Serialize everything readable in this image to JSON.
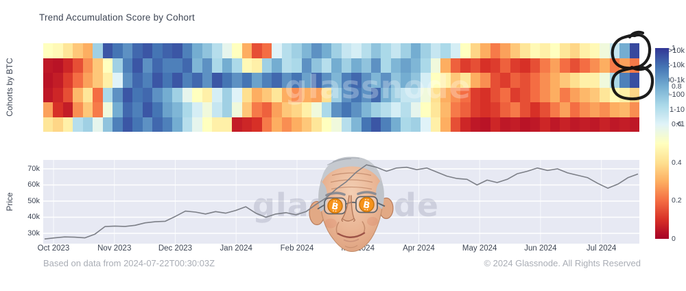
{
  "title": "Trend Accumulation Score by Cohort",
  "watermark": {
    "text": "glassnode"
  },
  "footer": {
    "left": "Based on data from 2024-07-22T00:30:03Z",
    "right": "© 2024 Glassnode. All Rights Reserved"
  },
  "colors": {
    "plot_background": "#e7e9f3",
    "price_line": "#7c7f87",
    "annotation_ink": "#0b0b0b",
    "bitcoin_orange": "#f7931a",
    "text_dark": "#3d4554",
    "text_muted": "#a9adb5",
    "colorscale_rdylbu": [
      "#a50026",
      "#d73027",
      "#f46d43",
      "#fdae61",
      "#fee090",
      "#ffffbf",
      "#e0f3f8",
      "#abd9e9",
      "#74add1",
      "#4575b4",
      "#313695"
    ]
  },
  "colorbar": {
    "tick_labels": [
      "1",
      "0.8",
      "0.6",
      "0.4",
      "0.2",
      "0"
    ]
  },
  "meme": {
    "description": "Charlie Munger caricature with Bitcoin coins for eyes pasted over the price chart"
  },
  "annotation_note": "Hand-drawn black double loop circling the latest dark-blue accumulation cells of the >10k and 100-1k cohorts",
  "chart_data": [
    {
      "type": "heatmap",
      "title": "Trend Accumulation Score by Cohort",
      "ylabel": "Cohorts by BTC",
      "zmin": 0,
      "zmax": 1,
      "colorscale": "RdYlBu (0 = dark red, 1 = dark blue)",
      "rows": [
        ">10k",
        "1k-10k",
        "100-1k",
        "10-100",
        "1-10",
        "<1"
      ],
      "x_tick_labels": [
        "Oct 2023",
        "Nov 2023",
        "Dec 2023",
        "Jan 2024",
        "Feb 2024",
        "Mar 2024",
        "Apr 2024",
        "May 2024",
        "Jun 2024",
        "Jul 2024"
      ],
      "values": [
        [
          0.5,
          0.48,
          0.42,
          0.35,
          0.3,
          0.72,
          0.95,
          0.9,
          0.85,
          0.92,
          0.95,
          0.9,
          0.93,
          0.95,
          0.88,
          0.8,
          0.75,
          0.68,
          0.58,
          0.5,
          0.3,
          0.15,
          0.2,
          0.6,
          0.68,
          0.72,
          0.78,
          0.85,
          0.8,
          0.72,
          0.65,
          0.62,
          0.68,
          0.75,
          0.7,
          0.65,
          0.72,
          0.8,
          0.72,
          0.65,
          0.7,
          0.62,
          0.5,
          0.38,
          0.3,
          0.22,
          0.28,
          0.35,
          0.42,
          0.48,
          0.45,
          0.5,
          0.42,
          0.38,
          0.45,
          0.48,
          0.55,
          0.65,
          0.8,
          0.97
        ],
        [
          0.05,
          0.04,
          0.08,
          0.15,
          0.25,
          0.35,
          0.5,
          0.72,
          0.88,
          0.95,
          0.85,
          0.92,
          0.88,
          0.88,
          0.92,
          0.78,
          0.85,
          0.7,
          0.8,
          0.7,
          0.48,
          0.45,
          0.72,
          0.8,
          0.68,
          0.7,
          0.85,
          0.75,
          0.68,
          0.8,
          0.72,
          0.8,
          0.75,
          0.85,
          0.7,
          0.78,
          0.82,
          0.78,
          0.7,
          0.55,
          0.3,
          0.18,
          0.12,
          0.15,
          0.1,
          0.12,
          0.18,
          0.12,
          0.1,
          0.15,
          0.22,
          0.28,
          0.2,
          0.15,
          0.2,
          0.25,
          0.3,
          0.22,
          0.28,
          0.22
        ],
        [
          0.04,
          0.06,
          0.12,
          0.2,
          0.28,
          0.35,
          0.45,
          0.6,
          0.85,
          0.92,
          0.88,
          0.95,
          0.9,
          0.95,
          0.88,
          0.92,
          0.85,
          0.95,
          0.9,
          0.85,
          0.9,
          0.82,
          0.88,
          0.92,
          0.85,
          0.9,
          0.82,
          0.92,
          0.85,
          0.78,
          0.88,
          0.92,
          0.85,
          0.78,
          0.85,
          0.75,
          0.8,
          0.75,
          0.62,
          0.5,
          0.45,
          0.35,
          0.42,
          0.3,
          0.25,
          0.15,
          0.12,
          0.18,
          0.15,
          0.2,
          0.25,
          0.3,
          0.35,
          0.4,
          0.45,
          0.45,
          0.55,
          0.7,
          0.88,
          0.96
        ],
        [
          0.05,
          0.08,
          0.15,
          0.32,
          0.42,
          0.2,
          0.7,
          0.85,
          0.95,
          0.9,
          0.92,
          0.85,
          0.8,
          0.72,
          0.58,
          0.5,
          0.45,
          0.62,
          0.72,
          0.6,
          0.4,
          0.3,
          0.35,
          0.42,
          0.3,
          0.25,
          0.3,
          0.28,
          0.4,
          0.72,
          0.85,
          0.9,
          0.85,
          0.92,
          0.8,
          0.72,
          0.65,
          0.65,
          0.55,
          0.4,
          0.3,
          0.25,
          0.2,
          0.12,
          0.1,
          0.15,
          0.2,
          0.12,
          0.15,
          0.2,
          0.25,
          0.3,
          0.22,
          0.28,
          0.32,
          0.35,
          0.42,
          0.48,
          0.45,
          0.38
        ],
        [
          0.28,
          0.1,
          0.06,
          0.25,
          0.35,
          0.22,
          0.55,
          0.8,
          0.92,
          0.88,
          0.95,
          0.9,
          0.82,
          0.78,
          0.7,
          0.62,
          0.55,
          0.65,
          0.72,
          0.55,
          0.35,
          0.22,
          0.18,
          0.28,
          0.35,
          0.38,
          0.45,
          0.55,
          0.7,
          0.85,
          0.9,
          0.85,
          0.78,
          0.72,
          0.68,
          0.62,
          0.68,
          0.58,
          0.5,
          0.42,
          0.32,
          0.22,
          0.18,
          0.12,
          0.1,
          0.12,
          0.18,
          0.22,
          0.15,
          0.1,
          0.15,
          0.22,
          0.28,
          0.2,
          0.25,
          0.28,
          0.25,
          0.3,
          0.32,
          0.25
        ],
        [
          0.42,
          0.38,
          0.45,
          0.68,
          0.72,
          0.58,
          0.75,
          0.88,
          0.95,
          0.9,
          0.85,
          0.92,
          0.88,
          0.8,
          0.68,
          0.58,
          0.5,
          0.45,
          0.45,
          0.06,
          0.08,
          0.1,
          0.22,
          0.3,
          0.25,
          0.3,
          0.35,
          0.42,
          0.5,
          0.55,
          0.68,
          0.78,
          0.9,
          0.95,
          0.88,
          0.8,
          0.7,
          0.72,
          0.6,
          0.45,
          0.3,
          0.15,
          0.08,
          0.05,
          0.04,
          0.08,
          0.05,
          0.06,
          0.04,
          0.05,
          0.08,
          0.05,
          0.07,
          0.05,
          0.06,
          0.05,
          0.07,
          0.05,
          0.06,
          0.05
        ]
      ]
    },
    {
      "type": "line",
      "name": "BTC Price",
      "ylabel": "Price",
      "unit": "thousand USD",
      "y_tick_labels": [
        "70k",
        "60k",
        "50k",
        "40k",
        "30k"
      ],
      "ylim_k": [
        23.5,
        76.5
      ],
      "x_tick_labels": [
        "Oct 2023",
        "Nov 2023",
        "Dec 2023",
        "Jan 2024",
        "Feb 2024",
        "Mar 2024",
        "Apr 2024",
        "May 2024",
        "Jun 2024",
        "Jul 2024"
      ],
      "values_k_usd": [
        26.5,
        27.2,
        27.8,
        27.6,
        27.2,
        29.5,
        34.2,
        34.5,
        34.3,
        35.0,
        36.5,
        37.2,
        37.5,
        40.5,
        43.8,
        43.2,
        42.0,
        43.5,
        42.5,
        44.2,
        46.5,
        42.5,
        40.0,
        42.0,
        42.8,
        41.5,
        43.5,
        48.0,
        52.0,
        57.5,
        62.0,
        68.0,
        72.5,
        71.0,
        68.5,
        70.5,
        71.0,
        69.5,
        70.5,
        68.0,
        65.5,
        64.0,
        63.5,
        60.0,
        63.0,
        61.5,
        63.5,
        67.0,
        68.5,
        70.5,
        69.0,
        70.0,
        67.5,
        66.0,
        64.5,
        61.0,
        58.0,
        60.5,
        64.5,
        66.8
      ]
    }
  ]
}
